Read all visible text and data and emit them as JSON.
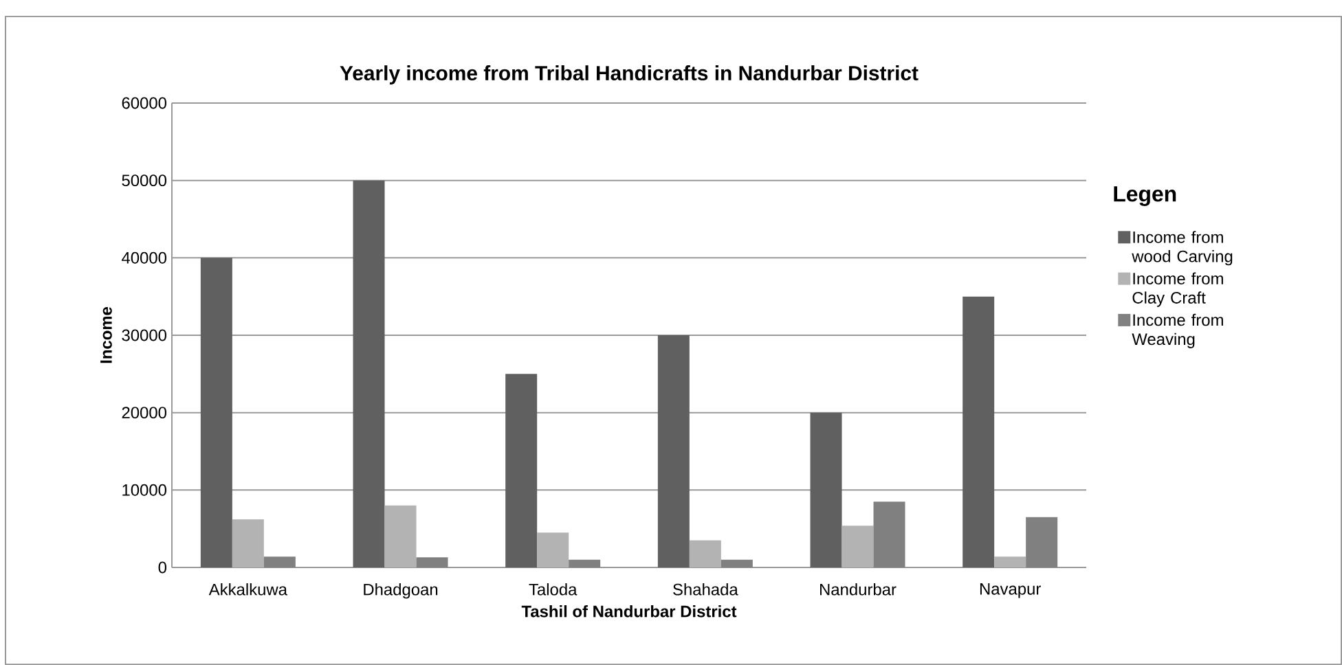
{
  "chart_data": {
    "type": "bar",
    "title": "Yearly income from Tribal Handicrafts in Nandurbar District",
    "xlabel": "Tashil of Nandurbar District",
    "ylabel": "Income",
    "legend_title": "Legen",
    "categories": [
      "Akkalkuwa",
      "Dhadgoan",
      "Taloda",
      "Shahada",
      "Nandurbar",
      "Navapur"
    ],
    "series": [
      {
        "name": "Income from wood Carving",
        "color": "#606060",
        "values": [
          40000,
          50000,
          25000,
          30000,
          20000,
          35000
        ]
      },
      {
        "name": "Income from Clay Craft",
        "color": "#b3b3b3",
        "values": [
          6200,
          8000,
          4500,
          3500,
          5400,
          1400
        ]
      },
      {
        "name": "Income from Weaving",
        "color": "#808080",
        "values": [
          1400,
          1300,
          1000,
          1000,
          8500,
          6500
        ]
      }
    ],
    "ylim": [
      0,
      60000
    ],
    "yticks": [
      0,
      10000,
      20000,
      30000,
      40000,
      50000,
      60000
    ],
    "grid": "y",
    "legend": "right"
  }
}
